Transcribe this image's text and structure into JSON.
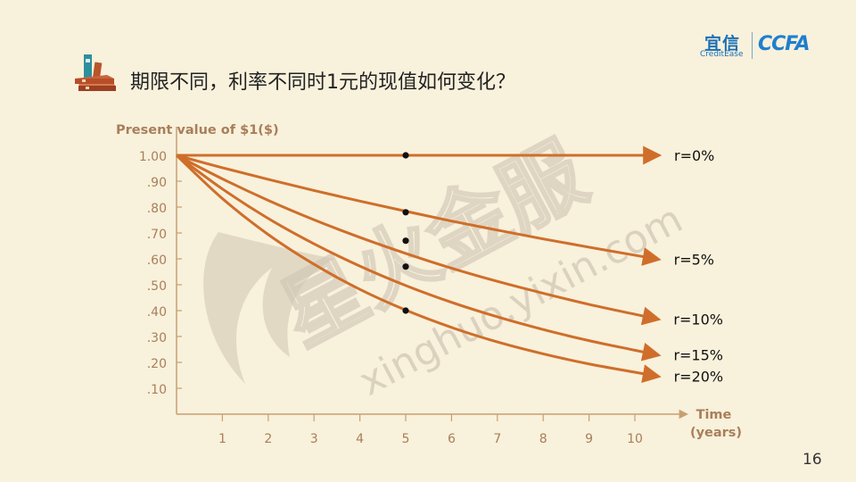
{
  "brand": {
    "name_cn": "宜信",
    "name_en": "CreditEase",
    "ccfa": "CCFA"
  },
  "slide": {
    "title": "期限不同，利率不同时1元的现值如何变化？",
    "page_number": "16"
  },
  "watermark": {
    "cn": "星火金服",
    "url": "xinghuo.yixin.com"
  },
  "colors": {
    "curve": "#cf6e2a",
    "axis": "#c8a070",
    "label": "#a87f5a",
    "dot": "#111111",
    "watermark": "#cfc4b3"
  },
  "chart_data": {
    "type": "line",
    "ylabel": "Present value of $1($)",
    "xlabel": "Time\n(years)",
    "x_ticks": [
      1,
      2,
      3,
      4,
      5,
      6,
      7,
      8,
      9,
      10
    ],
    "x_tick_labels": [
      "1",
      "2",
      "3",
      "4",
      "5",
      "6",
      "7",
      "8",
      "9",
      "10"
    ],
    "y_ticks": [
      0.1,
      0.2,
      0.3,
      0.4,
      0.5,
      0.6,
      0.7,
      0.8,
      0.9,
      1.0
    ],
    "y_tick_labels": [
      ".10",
      ".20",
      ".30",
      ".40",
      ".50",
      ".60",
      ".70",
      ".80",
      ".90",
      "1.00"
    ],
    "xlim": [
      0,
      11
    ],
    "ylim": [
      0,
      1.0
    ],
    "x": [
      0,
      1,
      2,
      3,
      4,
      5,
      6,
      7,
      8,
      9,
      10
    ],
    "series": [
      {
        "name": "r=0%",
        "values": [
          1.0,
          1.0,
          1.0,
          1.0,
          1.0,
          1.0,
          1.0,
          1.0,
          1.0,
          1.0,
          1.0
        ],
        "marker_x": 5,
        "marker_y": 1.0
      },
      {
        "name": "r=5%",
        "values": [
          1.0,
          0.952,
          0.907,
          0.864,
          0.823,
          0.784,
          0.746,
          0.711,
          0.677,
          0.645,
          0.614
        ],
        "marker_x": 5,
        "marker_y": 0.78
      },
      {
        "name": "r=10%",
        "values": [
          1.0,
          0.909,
          0.826,
          0.751,
          0.683,
          0.621,
          0.564,
          0.513,
          0.467,
          0.424,
          0.386
        ],
        "marker_x": 5,
        "marker_y": 0.67
      },
      {
        "name": "r=15%",
        "values": [
          1.0,
          0.87,
          0.756,
          0.658,
          0.572,
          0.497,
          0.432,
          0.376,
          0.327,
          0.284,
          0.247
        ],
        "marker_x": 5,
        "marker_y": 0.57
      },
      {
        "name": "r=20%",
        "values": [
          1.0,
          0.833,
          0.694,
          0.579,
          0.482,
          0.402,
          0.335,
          0.279,
          0.233,
          0.194,
          0.162
        ],
        "marker_x": 5,
        "marker_y": 0.4
      }
    ],
    "grid": false,
    "legend": "series labels at line ends (right)"
  }
}
